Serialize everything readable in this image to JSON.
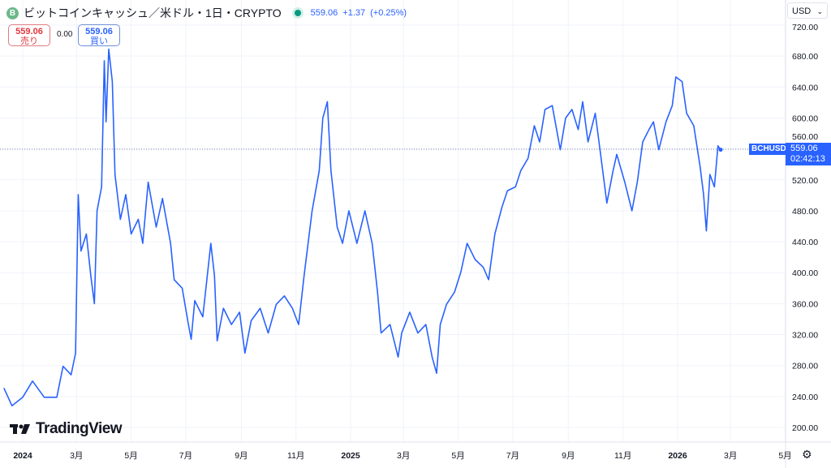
{
  "header": {
    "coin_icon": "bitcoin-cash-icon",
    "coin_letter": "B",
    "title": "ビットコインキャッシュ／米ドル・1日・CRYPTO",
    "status": "market-open",
    "price": "559.06",
    "change": "+1.37",
    "change_pct": "(+0.25%)"
  },
  "trade": {
    "sell_price": "559.06",
    "sell_label": "売り",
    "spread": "0.00",
    "buy_price": "559.06",
    "buy_label": "買い"
  },
  "currency": "USD",
  "last": {
    "symbol": "BCHUSD",
    "price": "559.06",
    "countdown": "02:42:13"
  },
  "brand": "TradingView",
  "colors": {
    "line": "#2962ff",
    "grid": "#f0f3fa",
    "text": "#131722"
  },
  "chart_data": {
    "type": "line",
    "title": "ビットコインキャッシュ／米ドル・1日・CRYPTO",
    "ylim": [
      200,
      720
    ],
    "yticks": [
      "200.00",
      "240.00",
      "280.00",
      "320.00",
      "360.00",
      "400.00",
      "440.00",
      "480.00",
      "520.00",
      "560.00",
      "600.00",
      "640.00",
      "680.00",
      "720.00"
    ],
    "xticks": [
      {
        "label": "2024",
        "date": "2024-01-01",
        "bold": true
      },
      {
        "label": "3月",
        "date": "2024-03-01"
      },
      {
        "label": "5月",
        "date": "2024-05-01"
      },
      {
        "label": "7月",
        "date": "2024-07-01"
      },
      {
        "label": "9月",
        "date": "2024-09-01"
      },
      {
        "label": "11月",
        "date": "2024-11-01"
      },
      {
        "label": "2025",
        "date": "2025-01-01",
        "bold": true
      },
      {
        "label": "3月",
        "date": "2025-03-01"
      },
      {
        "label": "5月",
        "date": "2025-05-01"
      },
      {
        "label": "7月",
        "date": "2025-07-01"
      },
      {
        "label": "9月",
        "date": "2025-09-01"
      },
      {
        "label": "11月",
        "date": "2025-11-01"
      },
      {
        "label": "2026",
        "date": "2026-01-01",
        "bold": true
      },
      {
        "label": "3月",
        "date": "2026-03-01"
      },
      {
        "label": "5月",
        "date": "2026-05-01"
      }
    ],
    "grid": true,
    "last_value": 559.06,
    "points": [
      [
        "2023-12-11",
        251
      ],
      [
        "2023-12-20",
        228
      ],
      [
        "2024-01-01",
        239
      ],
      [
        "2024-01-12",
        260
      ],
      [
        "2024-01-25",
        239
      ],
      [
        "2024-02-08",
        239
      ],
      [
        "2024-02-15",
        279
      ],
      [
        "2024-02-24",
        268
      ],
      [
        "2024-02-29",
        296
      ],
      [
        "2024-03-03",
        501
      ],
      [
        "2024-03-06",
        428
      ],
      [
        "2024-03-12",
        450
      ],
      [
        "2024-03-17",
        396
      ],
      [
        "2024-03-21",
        360
      ],
      [
        "2024-03-24",
        480
      ],
      [
        "2024-03-29",
        511
      ],
      [
        "2024-04-01",
        674
      ],
      [
        "2024-04-03",
        595
      ],
      [
        "2024-04-06",
        689
      ],
      [
        "2024-04-10",
        647
      ],
      [
        "2024-04-13",
        527
      ],
      [
        "2024-04-19",
        469
      ],
      [
        "2024-04-25",
        501
      ],
      [
        "2024-05-01",
        450
      ],
      [
        "2024-05-09",
        469
      ],
      [
        "2024-05-14",
        438
      ],
      [
        "2024-05-20",
        517
      ],
      [
        "2024-05-29",
        459
      ],
      [
        "2024-06-05",
        496
      ],
      [
        "2024-06-14",
        438
      ],
      [
        "2024-06-18",
        391
      ],
      [
        "2024-06-27",
        380
      ],
      [
        "2024-07-04",
        333
      ],
      [
        "2024-07-07",
        314
      ],
      [
        "2024-07-11",
        364
      ],
      [
        "2024-07-20",
        343
      ],
      [
        "2024-07-29",
        438
      ],
      [
        "2024-08-02",
        396
      ],
      [
        "2024-08-05",
        312
      ],
      [
        "2024-08-12",
        354
      ],
      [
        "2024-08-21",
        333
      ],
      [
        "2024-08-30",
        349
      ],
      [
        "2024-09-05",
        296
      ],
      [
        "2024-09-12",
        338
      ],
      [
        "2024-09-22",
        354
      ],
      [
        "2024-10-01",
        322
      ],
      [
        "2024-10-10",
        359
      ],
      [
        "2024-10-19",
        370
      ],
      [
        "2024-10-28",
        354
      ],
      [
        "2024-11-04",
        333
      ],
      [
        "2024-11-10",
        396
      ],
      [
        "2024-11-19",
        480
      ],
      [
        "2024-11-27",
        532
      ],
      [
        "2024-12-01",
        600
      ],
      [
        "2024-12-06",
        621
      ],
      [
        "2024-12-10",
        532
      ],
      [
        "2024-12-17",
        459
      ],
      [
        "2024-12-23",
        438
      ],
      [
        "2024-12-30",
        480
      ],
      [
        "2025-01-08",
        438
      ],
      [
        "2025-01-17",
        480
      ],
      [
        "2025-01-25",
        438
      ],
      [
        "2025-01-31",
        375
      ],
      [
        "2025-02-04",
        322
      ],
      [
        "2025-02-14",
        333
      ],
      [
        "2025-02-23",
        291
      ],
      [
        "2025-02-27",
        322
      ],
      [
        "2025-03-08",
        349
      ],
      [
        "2025-03-17",
        322
      ],
      [
        "2025-03-26",
        333
      ],
      [
        "2025-04-02",
        291
      ],
      [
        "2025-04-07",
        270
      ],
      [
        "2025-04-11",
        333
      ],
      [
        "2025-04-18",
        359
      ],
      [
        "2025-04-27",
        375
      ],
      [
        "2025-05-04",
        401
      ],
      [
        "2025-05-11",
        438
      ],
      [
        "2025-05-20",
        417
      ],
      [
        "2025-05-29",
        407
      ],
      [
        "2025-06-04",
        391
      ],
      [
        "2025-06-11",
        450
      ],
      [
        "2025-06-19",
        485
      ],
      [
        "2025-06-25",
        506
      ],
      [
        "2025-07-04",
        511
      ],
      [
        "2025-07-10",
        532
      ],
      [
        "2025-07-18",
        548
      ],
      [
        "2025-07-25",
        590
      ],
      [
        "2025-07-31",
        569
      ],
      [
        "2025-08-06",
        611
      ],
      [
        "2025-08-14",
        616
      ],
      [
        "2025-08-23",
        559
      ],
      [
        "2025-08-29",
        600
      ],
      [
        "2025-09-05",
        611
      ],
      [
        "2025-09-12",
        585
      ],
      [
        "2025-09-17",
        621
      ],
      [
        "2025-09-23",
        569
      ],
      [
        "2025-10-01",
        606
      ],
      [
        "2025-10-07",
        553
      ],
      [
        "2025-10-14",
        490
      ],
      [
        "2025-10-21",
        532
      ],
      [
        "2025-10-25",
        553
      ],
      [
        "2025-11-03",
        517
      ],
      [
        "2025-11-11",
        480
      ],
      [
        "2025-11-17",
        517
      ],
      [
        "2025-11-23",
        569
      ],
      [
        "2025-11-30",
        585
      ],
      [
        "2025-12-05",
        595
      ],
      [
        "2025-12-11",
        559
      ],
      [
        "2025-12-19",
        595
      ],
      [
        "2025-12-26",
        616
      ],
      [
        "2025-12-30",
        653
      ],
      [
        "2026-01-06",
        647
      ],
      [
        "2026-01-11",
        606
      ],
      [
        "2026-01-19",
        590
      ],
      [
        "2026-01-26",
        538
      ],
      [
        "2026-01-30",
        501
      ],
      [
        "2026-02-02",
        454
      ],
      [
        "2026-02-06",
        527
      ],
      [
        "2026-02-11",
        511
      ],
      [
        "2026-02-15",
        564
      ],
      [
        "2026-02-18",
        559
      ]
    ]
  }
}
